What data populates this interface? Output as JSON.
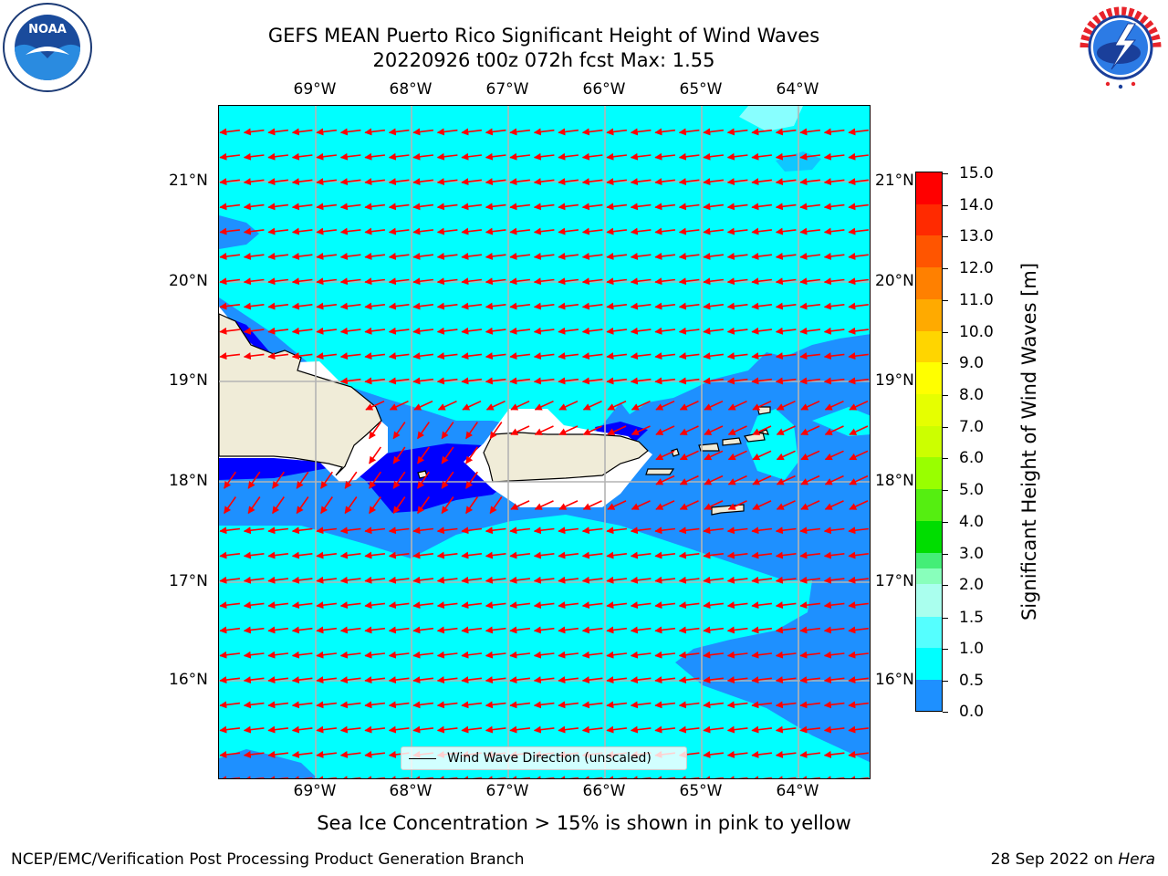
{
  "header": {
    "title_line1": "GEFS MEAN Puerto Rico Significant Height of Wind Waves",
    "title_line2": "20220926 t00z 072h fcst   Max: 1.55"
  },
  "logos": {
    "left": "NOAA",
    "left_ring_text": "NATIONAL OCEANIC AND ATMOSPHERIC ADMINISTRATION · U.S. DEPARTMENT OF COMMERCE",
    "right_ring_text": "NATIONAL WEATHER SERVICE"
  },
  "map": {
    "lon_labels": [
      "69°W",
      "68°W",
      "67°W",
      "66°W",
      "65°W",
      "64°W"
    ],
    "lat_labels": [
      "21°N",
      "20°N",
      "19°N",
      "18°N",
      "17°N",
      "16°N"
    ],
    "legend_label": "Wind Wave Direction (unscaled)",
    "colors": {
      "ocean_light": "#00ffff",
      "ocean_mid": "#1e90ff",
      "ocean_deep": "#0000ff",
      "land": "#f0ecd8",
      "arrow": "#ff0000",
      "grid": "#b4b4b4"
    }
  },
  "colorbar": {
    "label": "Significant Height of Wind Waves [m]",
    "ticks": [
      "15.0",
      "14.0",
      "13.0",
      "12.0",
      "11.0",
      "10.0",
      "9.0",
      "8.0",
      "7.0",
      "6.0",
      "5.0",
      "4.0",
      "3.0",
      "2.0",
      "1.5",
      "1.0",
      "0.5",
      "0.0"
    ],
    "colors_top_to_bottom": [
      "#ff0000",
      "#ff2a00",
      "#ff5500",
      "#ff8000",
      "#ffaa00",
      "#ffd500",
      "#ffff00",
      "#e6ff00",
      "#ccff00",
      "#99ff00",
      "#55ee11",
      "#00dd00",
      "#44ee77",
      "#88ffbb",
      "#aaffee",
      "#55ffff",
      "#00ffff",
      "#1e90ff",
      "#0000ff"
    ]
  },
  "subtitle": "Sea Ice Concentration > 15% is shown in pink to yellow",
  "footer": {
    "left": "NCEP/EMC/Verification Post Processing Product Generation Branch",
    "date": "28 Sep 2022 on ",
    "machine": "Hera"
  }
}
